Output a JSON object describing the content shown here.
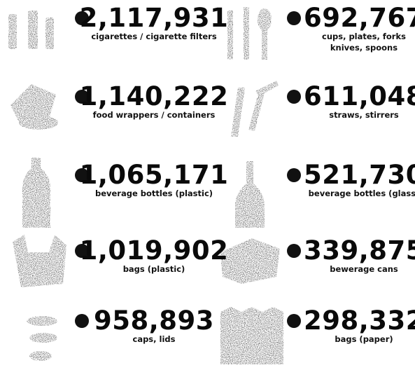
{
  "items": [
    {
      "count": "2,117,931",
      "label": [
        "cigarettes / cigarette filters"
      ]
    },
    {
      "count": "692,767",
      "label": [
        "cups, plates, forks",
        "knives, spoons"
      ]
    },
    {
      "count": "1,140,222",
      "label": [
        "food wrappers / containers"
      ]
    },
    {
      "count": "611,048",
      "label": [
        "straws, stirrers"
      ]
    },
    {
      "count": "1,065,171",
      "label": [
        "beverage bottles (plastic)"
      ]
    },
    {
      "count": "521,730",
      "label": [
        "beverage bottles (glass)"
      ]
    },
    {
      "count": "1,019,902",
      "label": [
        "bags (plastic)"
      ]
    },
    {
      "count": "339,875",
      "label": [
        "bewerage cans"
      ]
    },
    {
      "count": "958,893",
      "label": [
        "caps, lids"
      ]
    },
    {
      "count": "298,332",
      "label": [
        "bags (paper)"
      ]
    }
  ]
}
